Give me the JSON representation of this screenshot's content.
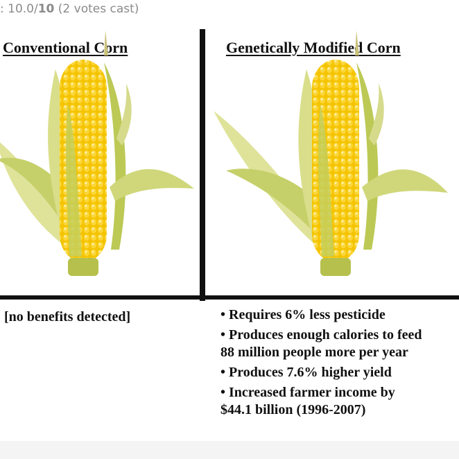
{
  "rating": {
    "prefix": ": 10.0/",
    "score": "10",
    "votes": " (2 votes cast)"
  },
  "left_column": {
    "heading": "Conventional Corn",
    "note": "[no benefits detected]"
  },
  "right_column": {
    "heading": "Genetically Modified Corn",
    "benefits": [
      {
        "text": "• Requires 6% less pesticide"
      },
      {
        "text": "• Produces enough calories to feed"
      },
      {
        "text": "88 million people more per year"
      },
      {
        "text": "• Produces 7.6% higher yield"
      },
      {
        "text": "• Increased farmer income by"
      },
      {
        "text": "$44.1 billion (1996-2007)"
      }
    ]
  },
  "colors": {
    "kernel": "#f5c400",
    "kernel_light": "#fbe67a",
    "husk": "#cbd46a",
    "husk_dark": "#a4b63c",
    "line": "#111111"
  }
}
